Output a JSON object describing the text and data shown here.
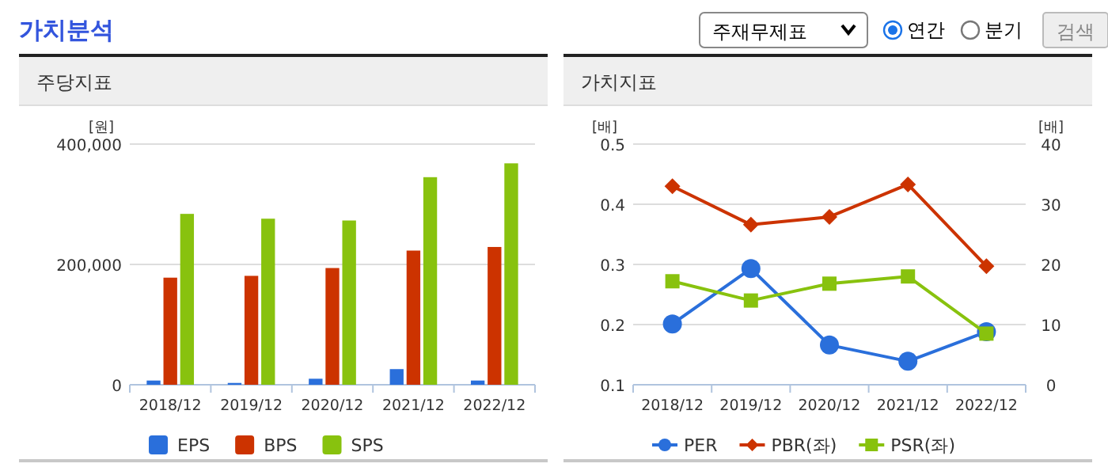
{
  "chart_data": [
    {
      "type": "other",
      "annotations": [
        "가치분석",
        "주재무제표",
        "연간",
        "분기",
        "검색"
      ]
    },
    {
      "type": "bar",
      "title": "주당지표",
      "ylabel": "[원]",
      "categories": [
        "2018/12",
        "2019/12",
        "2020/12",
        "2021/12",
        "2022/12"
      ],
      "series": [
        {
          "name": "EPS",
          "color": "#2a6fdb",
          "values": [
            7000,
            3000,
            10000,
            26000,
            7000
          ]
        },
        {
          "name": "BPS",
          "color": "#cc3300",
          "values": [
            178000,
            181000,
            194000,
            223000,
            229000
          ]
        },
        {
          "name": "SPS",
          "color": "#88c20e",
          "values": [
            284000,
            276000,
            273000,
            345000,
            368000
          ]
        }
      ],
      "ylim": [
        0,
        400000
      ],
      "yticks": [
        0,
        {
          "value": 200000,
          "label": "200,000"
        },
        {
          "value": 400000,
          "label": "400,000"
        }
      ],
      "grid": "y",
      "legend": "bottom"
    },
    {
      "type": "line",
      "title": "가치지표",
      "ylabel": "[배]",
      "y2label": "[배]",
      "categories": [
        "2018/12",
        "2019/12",
        "2020/12",
        "2021/12",
        "2022/12"
      ],
      "series": [
        {
          "name": "PER",
          "color": "#2a6fdb",
          "marker": "circle",
          "axis": "y2",
          "values": [
            10.1,
            19.3,
            6.6,
            3.9,
            8.8
          ]
        },
        {
          "name": "PBR(좌)",
          "color": "#cc3300",
          "marker": "diamond",
          "values": [
            0.43,
            0.366,
            0.379,
            0.433,
            0.297
          ]
        },
        {
          "name": "PSR(좌)",
          "color": "#88c20e",
          "marker": "square",
          "values": [
            0.272,
            0.24,
            0.268,
            0.28,
            0.185
          ]
        }
      ],
      "ylim": [
        0.1,
        0.5
      ],
      "yticks": [
        0.1,
        0.2,
        0.3,
        0.4,
        0.5
      ],
      "y2lim": [
        0,
        40
      ],
      "y2ticks": [
        0,
        10,
        20,
        30,
        40
      ],
      "grid": "y",
      "legend": "bottom"
    }
  ]
}
